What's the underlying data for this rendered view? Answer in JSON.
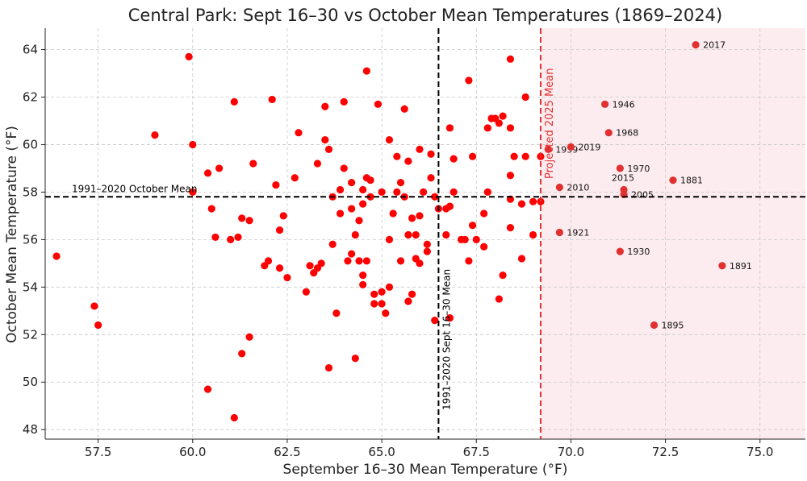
{
  "chart_data": {
    "type": "scatter",
    "title": "Central Park: Sept 16–30 vs October Mean Temperatures (1869–2024)",
    "xlabel": "September 16–30 Mean Temperature (°F)",
    "ylabel": "October Mean Temperature (°F)",
    "xlim": [
      56.1,
      76.2
    ],
    "ylim": [
      47.6,
      64.9
    ],
    "xticks": [
      57.5,
      60.0,
      62.5,
      65.0,
      67.5,
      70.0,
      72.5,
      75.0
    ],
    "xtick_labels": [
      "57.5",
      "60.0",
      "62.5",
      "65.0",
      "67.5",
      "70.0",
      "72.5",
      "75.0"
    ],
    "yticks": [
      48,
      50,
      52,
      54,
      56,
      58,
      60,
      62,
      64
    ],
    "ytick_labels": [
      "48",
      "50",
      "52",
      "54",
      "56",
      "58",
      "60",
      "62",
      "64"
    ],
    "grid": true,
    "point_color": "#ff0000",
    "highlight_color": "#e03030",
    "reference_lines": {
      "october_mean": {
        "value": 57.8,
        "label": "1991–2020 October Mean",
        "color": "#000000"
      },
      "sept_mean": {
        "value": 66.5,
        "label": "1991–2020 Sept 16–30 Mean",
        "color": "#000000"
      },
      "projected_2025": {
        "value": 69.2,
        "label": "Projected 2025 Mean",
        "color": "#e03030",
        "shade_color": "#fdecef"
      }
    },
    "points": [
      [
        56.4,
        55.3
      ],
      [
        57.4,
        53.2
      ],
      [
        57.5,
        52.4
      ],
      [
        59.0,
        60.4
      ],
      [
        59.9,
        63.7
      ],
      [
        60.0,
        60.0
      ],
      [
        60.0,
        58.0
      ],
      [
        60.4,
        49.7
      ],
      [
        60.4,
        58.8
      ],
      [
        60.5,
        57.3
      ],
      [
        60.6,
        56.1
      ],
      [
        60.7,
        59.0
      ],
      [
        61.0,
        56.0
      ],
      [
        61.1,
        61.8
      ],
      [
        61.1,
        48.5
      ],
      [
        61.2,
        56.1
      ],
      [
        61.3,
        51.2
      ],
      [
        61.3,
        56.9
      ],
      [
        61.5,
        51.9
      ],
      [
        61.5,
        56.8
      ],
      [
        61.6,
        59.2
      ],
      [
        61.9,
        54.9
      ],
      [
        62.0,
        55.1
      ],
      [
        62.1,
        61.9
      ],
      [
        62.2,
        58.3
      ],
      [
        62.3,
        54.8
      ],
      [
        62.3,
        56.4
      ],
      [
        62.4,
        57.0
      ],
      [
        62.5,
        54.4
      ],
      [
        62.7,
        58.6
      ],
      [
        62.8,
        60.5
      ],
      [
        63.0,
        53.8
      ],
      [
        63.1,
        54.9
      ],
      [
        63.2,
        54.6
      ],
      [
        63.3,
        59.2
      ],
      [
        63.3,
        54.8
      ],
      [
        63.4,
        55.0
      ],
      [
        63.5,
        60.2
      ],
      [
        63.5,
        61.6
      ],
      [
        63.6,
        59.8
      ],
      [
        63.6,
        50.6
      ],
      [
        63.7,
        57.8
      ],
      [
        63.7,
        55.8
      ],
      [
        63.8,
        52.9
      ],
      [
        63.9,
        57.1
      ],
      [
        63.9,
        58.1
      ],
      [
        64.0,
        59.0
      ],
      [
        64.0,
        61.8
      ],
      [
        64.1,
        55.1
      ],
      [
        64.2,
        58.4
      ],
      [
        64.2,
        55.4
      ],
      [
        64.2,
        57.3
      ],
      [
        64.3,
        56.2
      ],
      [
        64.3,
        51.0
      ],
      [
        64.4,
        55.1
      ],
      [
        64.4,
        56.8
      ],
      [
        64.5,
        54.1
      ],
      [
        64.5,
        57.5
      ],
      [
        64.5,
        58.1
      ],
      [
        64.5,
        54.5
      ],
      [
        64.6,
        55.1
      ],
      [
        64.6,
        63.1
      ],
      [
        64.6,
        58.6
      ],
      [
        64.7,
        58.5
      ],
      [
        64.7,
        57.8
      ],
      [
        64.8,
        53.7
      ],
      [
        64.8,
        53.3
      ],
      [
        64.9,
        61.7
      ],
      [
        65.0,
        58.0
      ],
      [
        65.0,
        53.8
      ],
      [
        65.0,
        53.3
      ],
      [
        65.1,
        52.9
      ],
      [
        65.2,
        56.0
      ],
      [
        65.2,
        60.2
      ],
      [
        65.2,
        54.0
      ],
      [
        65.3,
        57.1
      ],
      [
        65.4,
        59.5
      ],
      [
        65.4,
        58.0
      ],
      [
        65.5,
        55.1
      ],
      [
        65.5,
        58.4
      ],
      [
        65.6,
        61.5
      ],
      [
        65.6,
        57.8
      ],
      [
        65.7,
        56.2
      ],
      [
        65.7,
        59.3
      ],
      [
        65.7,
        53.4
      ],
      [
        65.8,
        53.7
      ],
      [
        65.8,
        56.9
      ],
      [
        65.9,
        55.2
      ],
      [
        65.9,
        56.2
      ],
      [
        66.0,
        55.0
      ],
      [
        66.0,
        59.8
      ],
      [
        66.0,
        57.0
      ],
      [
        66.1,
        58.0
      ],
      [
        66.2,
        55.8
      ],
      [
        66.2,
        55.5
      ],
      [
        66.3,
        59.6
      ],
      [
        66.3,
        58.6
      ],
      [
        66.4,
        52.6
      ],
      [
        66.4,
        57.8
      ],
      [
        66.5,
        57.3
      ],
      [
        66.7,
        56.2
      ],
      [
        66.7,
        57.3
      ],
      [
        66.8,
        57.4
      ],
      [
        66.8,
        60.7
      ],
      [
        66.8,
        52.7
      ],
      [
        66.9,
        58.0
      ],
      [
        66.9,
        59.4
      ],
      [
        67.1,
        56.0
      ],
      [
        67.2,
        56.0
      ],
      [
        67.3,
        62.7
      ],
      [
        67.3,
        55.1
      ],
      [
        67.4,
        59.5
      ],
      [
        67.4,
        56.6
      ],
      [
        67.5,
        56.0
      ],
      [
        67.7,
        57.1
      ],
      [
        67.7,
        55.7
      ],
      [
        67.8,
        58.0
      ],
      [
        67.8,
        60.7
      ],
      [
        67.9,
        61.1
      ],
      [
        68.0,
        61.1
      ],
      [
        68.1,
        60.9
      ],
      [
        68.1,
        53.5
      ],
      [
        68.2,
        61.2
      ],
      [
        68.2,
        54.5
      ],
      [
        68.4,
        63.6
      ],
      [
        68.4,
        58.7
      ],
      [
        68.4,
        57.7
      ],
      [
        68.4,
        56.5
      ],
      [
        68.4,
        60.7
      ],
      [
        68.5,
        59.5
      ],
      [
        68.7,
        57.5
      ],
      [
        68.7,
        55.2
      ],
      [
        68.8,
        62.0
      ],
      [
        68.8,
        59.5
      ],
      [
        69.0,
        56.2
      ],
      [
        69.0,
        57.6
      ],
      [
        69.2,
        57.6
      ],
      [
        69.2,
        59.5
      ]
    ],
    "labeled_points": [
      {
        "label": "2017",
        "x": 73.3,
        "y": 64.2
      },
      {
        "label": "1946",
        "x": 70.9,
        "y": 61.7
      },
      {
        "label": "1968",
        "x": 71.0,
        "y": 60.5
      },
      {
        "label": "1959",
        "x": 69.4,
        "y": 59.8
      },
      {
        "label": "2019",
        "x": 70.0,
        "y": 59.9
      },
      {
        "label": "1970",
        "x": 71.3,
        "y": 59.0
      },
      {
        "label": "1881",
        "x": 72.7,
        "y": 58.5
      },
      {
        "label": "2010",
        "x": 69.7,
        "y": 58.2
      },
      {
        "label": "2015",
        "x": 71.4,
        "y": 58.1
      },
      {
        "label": "2005",
        "x": 71.4,
        "y": 57.9
      },
      {
        "label": "1921",
        "x": 69.7,
        "y": 56.3
      },
      {
        "label": "1930",
        "x": 71.3,
        "y": 55.5
      },
      {
        "label": "1891",
        "x": 74.0,
        "y": 54.9
      },
      {
        "label": "1895",
        "x": 72.2,
        "y": 52.4
      }
    ]
  }
}
